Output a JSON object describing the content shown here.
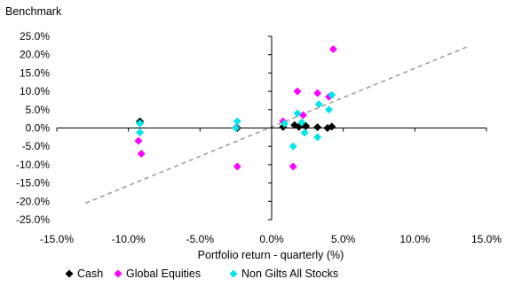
{
  "chart_data": {
    "type": "scatter",
    "title": "",
    "ylabel": "Benchmark",
    "xlabel": "Portfolio return - quarterly (%)",
    "xlim": [
      -0.15,
      0.15
    ],
    "ylim": [
      -0.25,
      0.25
    ],
    "x_ticks": [
      -0.15,
      -0.1,
      -0.05,
      0.0,
      0.05,
      0.1,
      0.15
    ],
    "y_ticks": [
      0.25,
      0.2,
      0.15,
      0.1,
      0.05,
      0.0,
      -0.05,
      -0.1,
      -0.15,
      -0.2,
      -0.25
    ],
    "x_tick_labels": [
      "-15.0%",
      "-10.0%",
      "-5.0%",
      "0.0%",
      "5.0%",
      "10.0%",
      "15.0%"
    ],
    "y_tick_labels": [
      "25.0%",
      "20.0%",
      "15.0%",
      "10.0%",
      "5.0%",
      "0.0%",
      "-5.0%",
      "-10.0%",
      "-15.0%",
      "-20.0%",
      "-25.0%"
    ],
    "grid": false,
    "legend_position": "bottom",
    "reference_line": {
      "style": "dashed",
      "color": "#999999",
      "points": [
        [
          -0.13,
          -0.205
        ],
        [
          0.137,
          0.222
        ]
      ]
    },
    "series": [
      {
        "name": "Cash",
        "color": "#000000",
        "marker": "diamond",
        "points": [
          [
            -0.092,
            0.018
          ],
          [
            -0.092,
            0.013
          ],
          [
            -0.024,
            0.0
          ],
          [
            0.008,
            0.003
          ],
          [
            0.016,
            0.008
          ],
          [
            0.019,
            0.003
          ],
          [
            0.022,
            0.009
          ],
          [
            0.024,
            0.005
          ],
          [
            0.032,
            0.002
          ],
          [
            0.039,
            0.0
          ],
          [
            0.042,
            0.004
          ]
        ]
      },
      {
        "name": "Global Equities",
        "color": "#ff00ff",
        "marker": "diamond",
        "points": [
          [
            -0.093,
            -0.035
          ],
          [
            -0.091,
            -0.07
          ],
          [
            -0.025,
            0.001
          ],
          [
            -0.024,
            -0.105
          ],
          [
            0.008,
            0.018
          ],
          [
            0.015,
            -0.105
          ],
          [
            0.018,
            0.1
          ],
          [
            0.022,
            0.035
          ],
          [
            0.032,
            0.095
          ],
          [
            0.04,
            0.085
          ],
          [
            0.043,
            0.215
          ]
        ]
      },
      {
        "name": "Non Gilts All Stocks",
        "color": "#00e5e5",
        "marker": "diamond",
        "points": [
          [
            -0.092,
            0.013
          ],
          [
            -0.092,
            -0.012
          ],
          [
            -0.024,
            0.018
          ],
          [
            -0.025,
            0.0
          ],
          [
            0.009,
            0.012
          ],
          [
            0.015,
            -0.05
          ],
          [
            0.018,
            0.04
          ],
          [
            0.021,
            0.015
          ],
          [
            0.023,
            -0.013
          ],
          [
            0.032,
            -0.025
          ],
          [
            0.033,
            0.065
          ],
          [
            0.04,
            0.05
          ],
          [
            0.042,
            0.09
          ]
        ]
      }
    ]
  }
}
